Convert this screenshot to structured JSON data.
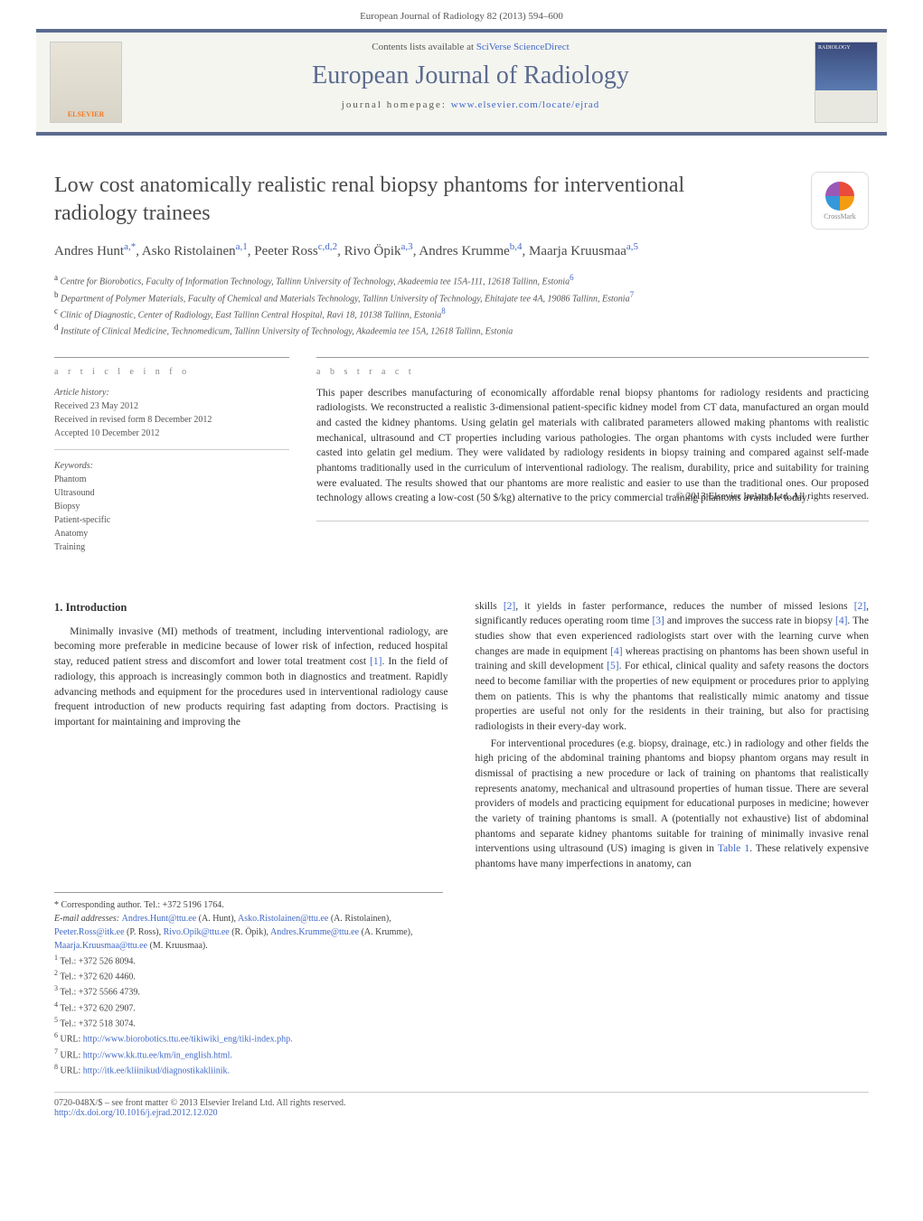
{
  "header": {
    "citation": "European Journal of Radiology 82 (2013) 594–600",
    "contents_line_prefix": "Contents lists available at ",
    "contents_link": "SciVerse ScienceDirect",
    "journal_name": "European Journal of Radiology",
    "homepage_prefix": "journal homepage: ",
    "homepage_url": "www.elsevier.com/locate/ejrad",
    "elsevier_label": "ELSEVIER",
    "cover_label": "RADIOLOGY",
    "crossmark": "CrossMark"
  },
  "article": {
    "title": "Low cost anatomically realistic renal biopsy phantoms for interventional radiology trainees",
    "authors_html_parts": [
      {
        "name": "Andres Hunt",
        "sup": "a,*"
      },
      {
        "name": "Asko Ristolainen",
        "sup": "a,1"
      },
      {
        "name": "Peeter Ross",
        "sup": "c,d,2"
      },
      {
        "name": "Rivo Öpik",
        "sup": "a,3"
      },
      {
        "name": "Andres Krumme",
        "sup": "b,4"
      },
      {
        "name": "Maarja Kruusmaa",
        "sup": "a,5"
      }
    ],
    "affiliations": [
      {
        "label": "a",
        "text": "Centre for Biorobotics, Faculty of Information Technology, Tallinn University of Technology, Akadeemia tee 15A-111, 12618 Tallinn, Estonia",
        "url_sup": "6"
      },
      {
        "label": "b",
        "text": "Department of Polymer Materials, Faculty of Chemical and Materials Technology, Tallinn University of Technology, Ehitajate tee 4A, 19086 Tallinn, Estonia",
        "url_sup": "7"
      },
      {
        "label": "c",
        "text": "Clinic of Diagnostic, Center of Radiology, East Tallinn Central Hospital, Ravi 18, 10138 Tallinn, Estonia",
        "url_sup": "8"
      },
      {
        "label": "d",
        "text": "Institute of Clinical Medicine, Technomedicum, Tallinn University of Technology, Akadeemia tee 15A, 12618 Tallinn, Estonia",
        "url_sup": ""
      }
    ]
  },
  "info": {
    "article_info_label": "a r t i c l e   i n f o",
    "abstract_label": "a b s t r a c t",
    "history_head": "Article history:",
    "history": [
      "Received 23 May 2012",
      "Received in revised form 8 December 2012",
      "Accepted 10 December 2012"
    ],
    "keywords_head": "Keywords:",
    "keywords": [
      "Phantom",
      "Ultrasound",
      "Biopsy",
      "Patient-specific",
      "Anatomy",
      "Training"
    ],
    "abstract": "This paper describes manufacturing of economically affordable renal biopsy phantoms for radiology residents and practicing radiologists. We reconstructed a realistic 3-dimensional patient-specific kidney model from CT data, manufactured an organ mould and casted the kidney phantoms. Using gelatin gel materials with calibrated parameters allowed making phantoms with realistic mechanical, ultrasound and CT properties including various pathologies. The organ phantoms with cysts included were further casted into gelatin gel medium. They were validated by radiology residents in biopsy training and compared against self-made phantoms traditionally used in the curriculum of interventional radiology. The realism, durability, price and suitability for training were evaluated. The results showed that our phantoms are more realistic and easier to use than the traditional ones. Our proposed technology allows creating a low-cost (50 $/kg) alternative to the pricy commercial training phantoms available today.",
    "copyright": "© 2013 Elsevier Ireland Ltd. All rights reserved."
  },
  "body": {
    "section1_heading": "1. Introduction",
    "col1_para1": "Minimally invasive (MI) methods of treatment, including interventional radiology, are becoming more preferable in medicine because of lower risk of infection, reduced hospital stay, reduced patient stress and discomfort and lower total treatment cost [1]. In the field of radiology, this approach is increasingly common both in diagnostics and treatment. Rapidly advancing methods and equipment for the procedures used in interventional radiology cause frequent introduction of new products requiring fast adapting from doctors. Practising is important for maintaining and improving the",
    "col2_para1": "skills [2], it yields in faster performance, reduces the number of missed lesions [2], significantly reduces operating room time [3] and improves the success rate in biopsy [4]. The studies show that even experienced radiologists start over with the learning curve when changes are made in equipment [4] whereas practising on phantoms has been shown useful in training and skill development [5]. For ethical, clinical quality and safety reasons the doctors need to become familiar with the properties of new equipment or procedures prior to applying them on patients. This is why the phantoms that realistically mimic anatomy and tissue properties are useful not only for the residents in their training, but also for practising radiologists in their every-day work.",
    "col2_para2": "For interventional procedures (e.g. biopsy, drainage, etc.) in radiology and other fields the high pricing of the abdominal training phantoms and biopsy phantom organs may result in dismissal of practising a new procedure or lack of training on phantoms that realistically represents anatomy, mechanical and ultrasound properties of human tissue. There are several providers of models and practicing equipment for educational purposes in medicine; however the variety of training phantoms is small. A (potentially not exhaustive) list of abdominal phantoms and separate kidney phantoms suitable for training of minimally invasive renal interventions using ultrasound (US) imaging is given in Table 1. These relatively expensive phantoms have many imperfections in anatomy, can"
  },
  "footnotes": {
    "corresponding": "* Corresponding author. Tel.: +372 5196 1764.",
    "email_label": "E-mail addresses: ",
    "emails": [
      {
        "addr": "Andres.Hunt@ttu.ee",
        "who": "(A. Hunt), "
      },
      {
        "addr": "Asko.Ristolainen@ttu.ee",
        "who": "(A. Ristolainen), "
      },
      {
        "addr": "Peeter.Ross@itk.ee",
        "who": "(P. Ross), "
      },
      {
        "addr": "Rivo.Opik@ttu.ee",
        "who": "(R. Öpik), "
      },
      {
        "addr": "Andres.Krumme@ttu.ee",
        "who": "(A. Krumme), "
      },
      {
        "addr": "Maarja.Kruusmaa@ttu.ee",
        "who": "(M. Kruusmaa)."
      }
    ],
    "tels": [
      {
        "n": "1",
        "t": "Tel.: +372 526 8094."
      },
      {
        "n": "2",
        "t": "Tel.: +372 620 4460."
      },
      {
        "n": "3",
        "t": "Tel.: +372 5566 4739."
      },
      {
        "n": "4",
        "t": "Tel.: +372 620 2907."
      },
      {
        "n": "5",
        "t": "Tel.: +372 518 3074."
      }
    ],
    "urls": [
      {
        "n": "6",
        "label": "URL: ",
        "url": "http://www.biorobotics.ttu.ee/tikiwiki_eng/tiki-index.php."
      },
      {
        "n": "7",
        "label": "URL: ",
        "url": "http://www.kk.ttu.ee/km/in_english.html."
      },
      {
        "n": "8",
        "label": "URL: ",
        "url": "http://itk.ee/kliinikud/diagnostikakliinik."
      }
    ]
  },
  "footer": {
    "line1": "0720-048X/$ – see front matter © 2013 Elsevier Ireland Ltd. All rights reserved.",
    "doi": "http://dx.doi.org/10.1016/j.ejrad.2012.12.020"
  },
  "colors": {
    "primary_blue": "#4169c7",
    "header_border": "#5b6b8f",
    "text": "#333333",
    "muted": "#555555"
  }
}
